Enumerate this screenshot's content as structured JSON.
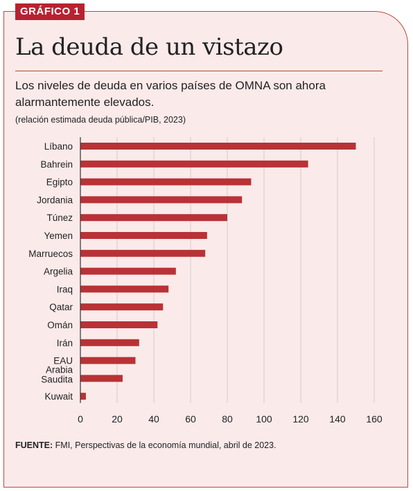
{
  "badge": "GRÁFICO 1",
  "title": "La deuda de un vistazo",
  "subtitle": "Los niveles de deuda en varios países de OMNA son ahora alarmantemente elevados.",
  "note": "(relación estimada deuda pública/PIB, 2023)",
  "source": {
    "label": "FUENTE:",
    "text": " FMI, Perspectivas de la economía mundial, abril de 2023."
  },
  "colors": {
    "bar": "#b83236",
    "border": "#b74a3c",
    "background": "#fbeaea",
    "badge": "#b82230"
  },
  "chart_data": {
    "type": "bar",
    "orientation": "horizontal",
    "categories": [
      "Líbano",
      "Bahrein",
      "Egipto",
      "Jordania",
      "Túnez",
      "Yemen",
      "Marruecos",
      "Argelia",
      "Iraq",
      "Qatar",
      "Omán",
      "Irán",
      "EAU",
      "Arabia Saudita",
      "Kuwait"
    ],
    "category_lines": [
      [
        "Líbano"
      ],
      [
        "Bahrein"
      ],
      [
        "Egipto"
      ],
      [
        "Jordania"
      ],
      [
        "Túnez"
      ],
      [
        "Yemen"
      ],
      [
        "Marruecos"
      ],
      [
        "Argelia"
      ],
      [
        "Iraq"
      ],
      [
        "Qatar"
      ],
      [
        "Omán"
      ],
      [
        "Irán"
      ],
      [
        "EAU"
      ],
      [
        "Arabia",
        "Saudita"
      ],
      [
        "Kuwait"
      ]
    ],
    "values": [
      150,
      124,
      93,
      88,
      80,
      69,
      68,
      52,
      48,
      45,
      42,
      32,
      30,
      23,
      3
    ],
    "xlim": [
      0,
      160
    ],
    "xticks": [
      0,
      20,
      40,
      60,
      80,
      100,
      120,
      140,
      160
    ],
    "grid": "vertical",
    "xlabel": "",
    "ylabel": ""
  }
}
